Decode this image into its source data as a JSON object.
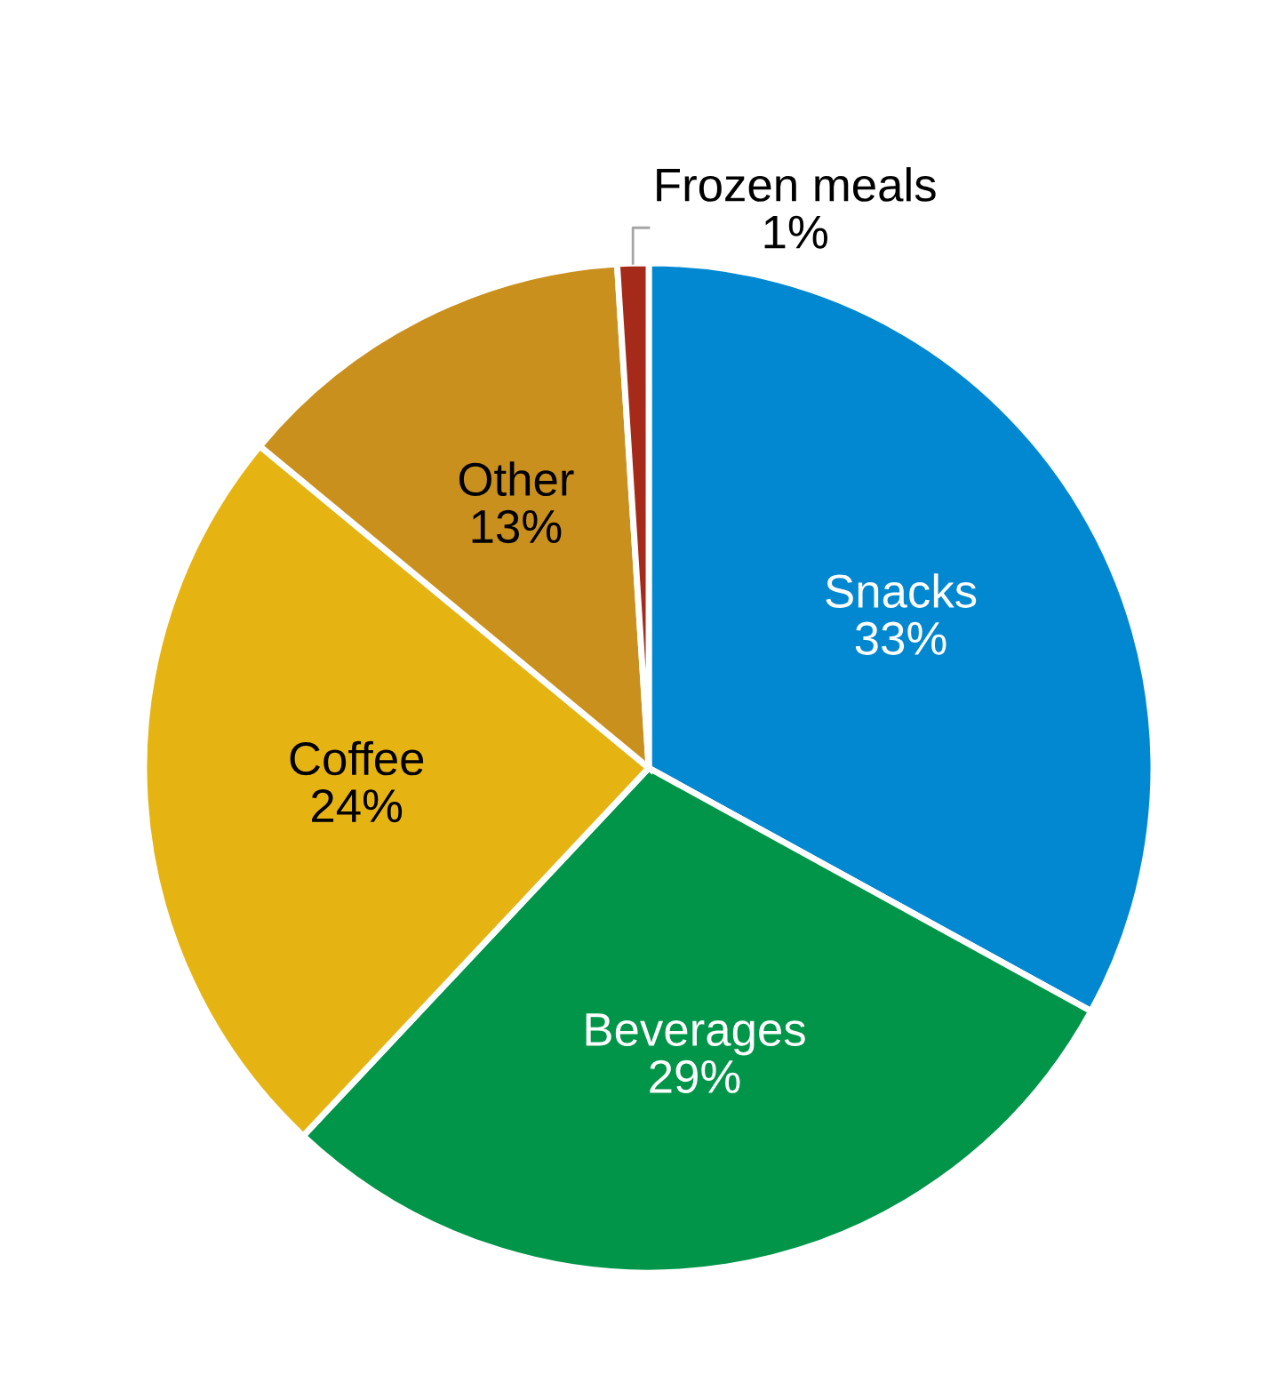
{
  "chart_data": {
    "type": "pie",
    "categories": [
      "Snacks",
      "Beverages",
      "Coffee",
      "Other",
      "Frozen meals"
    ],
    "values": [
      33,
      29,
      24,
      13,
      1
    ],
    "colors": [
      "#0288d1",
      "#009548",
      "#e6b412",
      "#c9901e",
      "#a52a1a"
    ],
    "value_labels": [
      "33%",
      "29%",
      "24%",
      "13%",
      "1%"
    ],
    "legend": false
  }
}
